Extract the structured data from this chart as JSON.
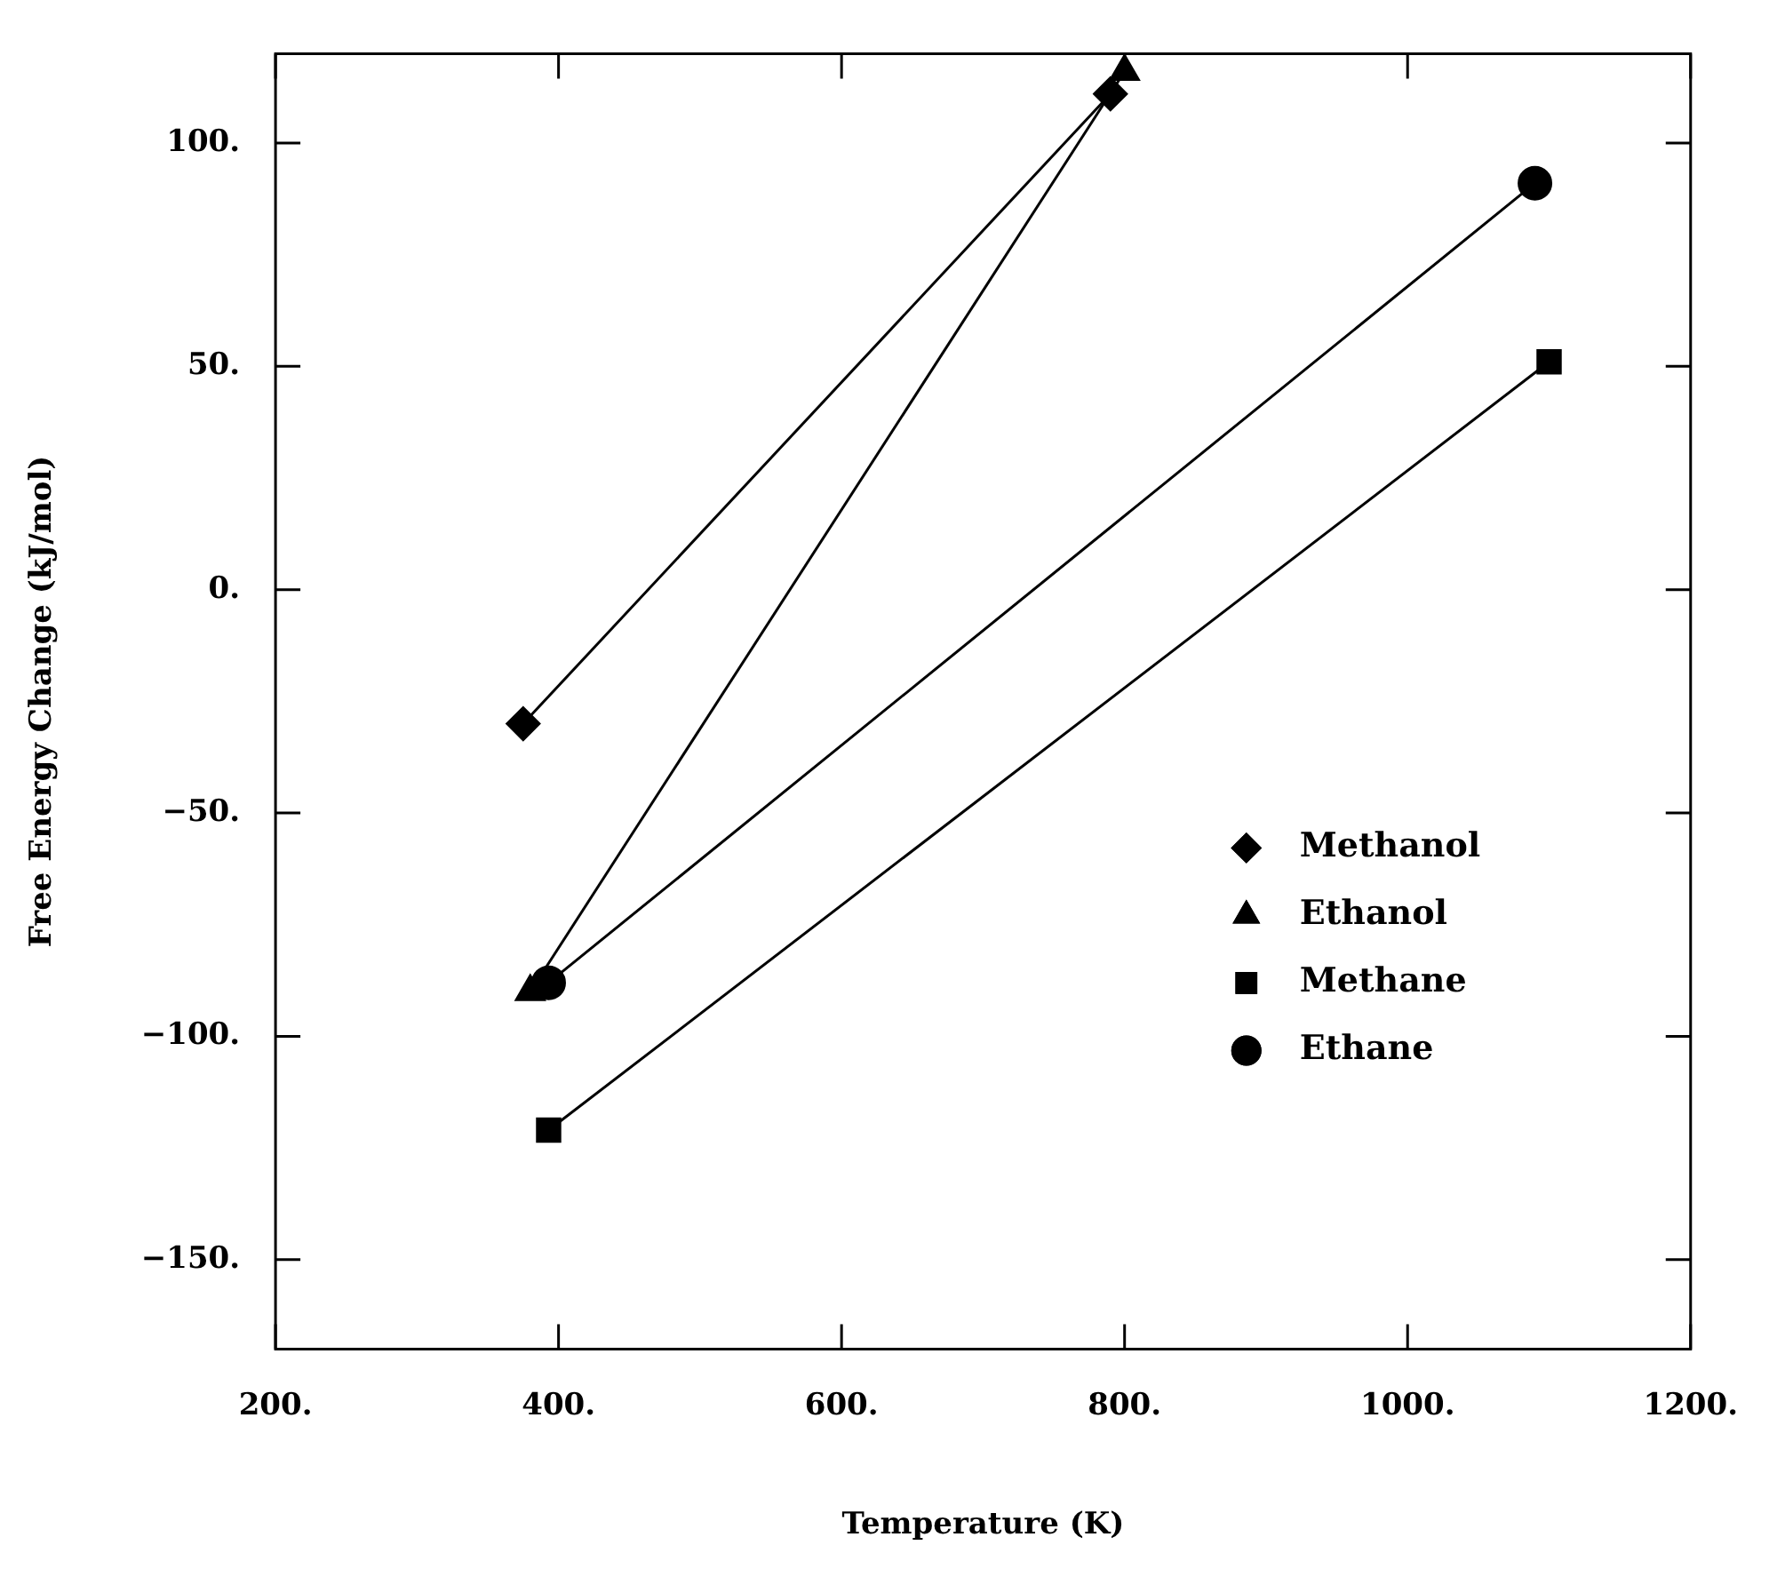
{
  "chart_data": {
    "type": "line",
    "xlabel": "Temperature (K)",
    "ylabel": "Free Energy Change (kJ/mol)",
    "xlim": [
      200,
      1200
    ],
    "ylim": [
      -170,
      120
    ],
    "xticks": [
      {
        "value": 200,
        "label": "200."
      },
      {
        "value": 400,
        "label": "400."
      },
      {
        "value": 600,
        "label": "600."
      },
      {
        "value": 800,
        "label": "800."
      },
      {
        "value": 1000,
        "label": "1000."
      },
      {
        "value": 1200,
        "label": "1200."
      }
    ],
    "yticks": [
      {
        "value": -150,
        "label": "−150."
      },
      {
        "value": -100,
        "label": "−100."
      },
      {
        "value": -50,
        "label": "−50."
      },
      {
        "value": 0,
        "label": "0."
      },
      {
        "value": 50,
        "label": "50."
      },
      {
        "value": 100,
        "label": "100."
      }
    ],
    "grid": false,
    "legend": "bottom right",
    "line_style": "solid",
    "series": [
      {
        "name": "Methanol",
        "color": "#000000",
        "marker": "diamond",
        "x": [
          375,
          790
        ],
        "values": [
          -30,
          111
        ]
      },
      {
        "name": "Ethanol",
        "color": "#000000",
        "marker": "triangle",
        "x": [
          380,
          800
        ],
        "values": [
          -90,
          116
        ]
      },
      {
        "name": "Methane",
        "color": "#000000",
        "marker": "square",
        "x": [
          393,
          1100
        ],
        "values": [
          -121,
          51
        ]
      },
      {
        "name": "Ethane",
        "color": "#000000",
        "marker": "circle",
        "x": [
          393,
          1090
        ],
        "values": [
          -88,
          91
        ]
      }
    ]
  }
}
